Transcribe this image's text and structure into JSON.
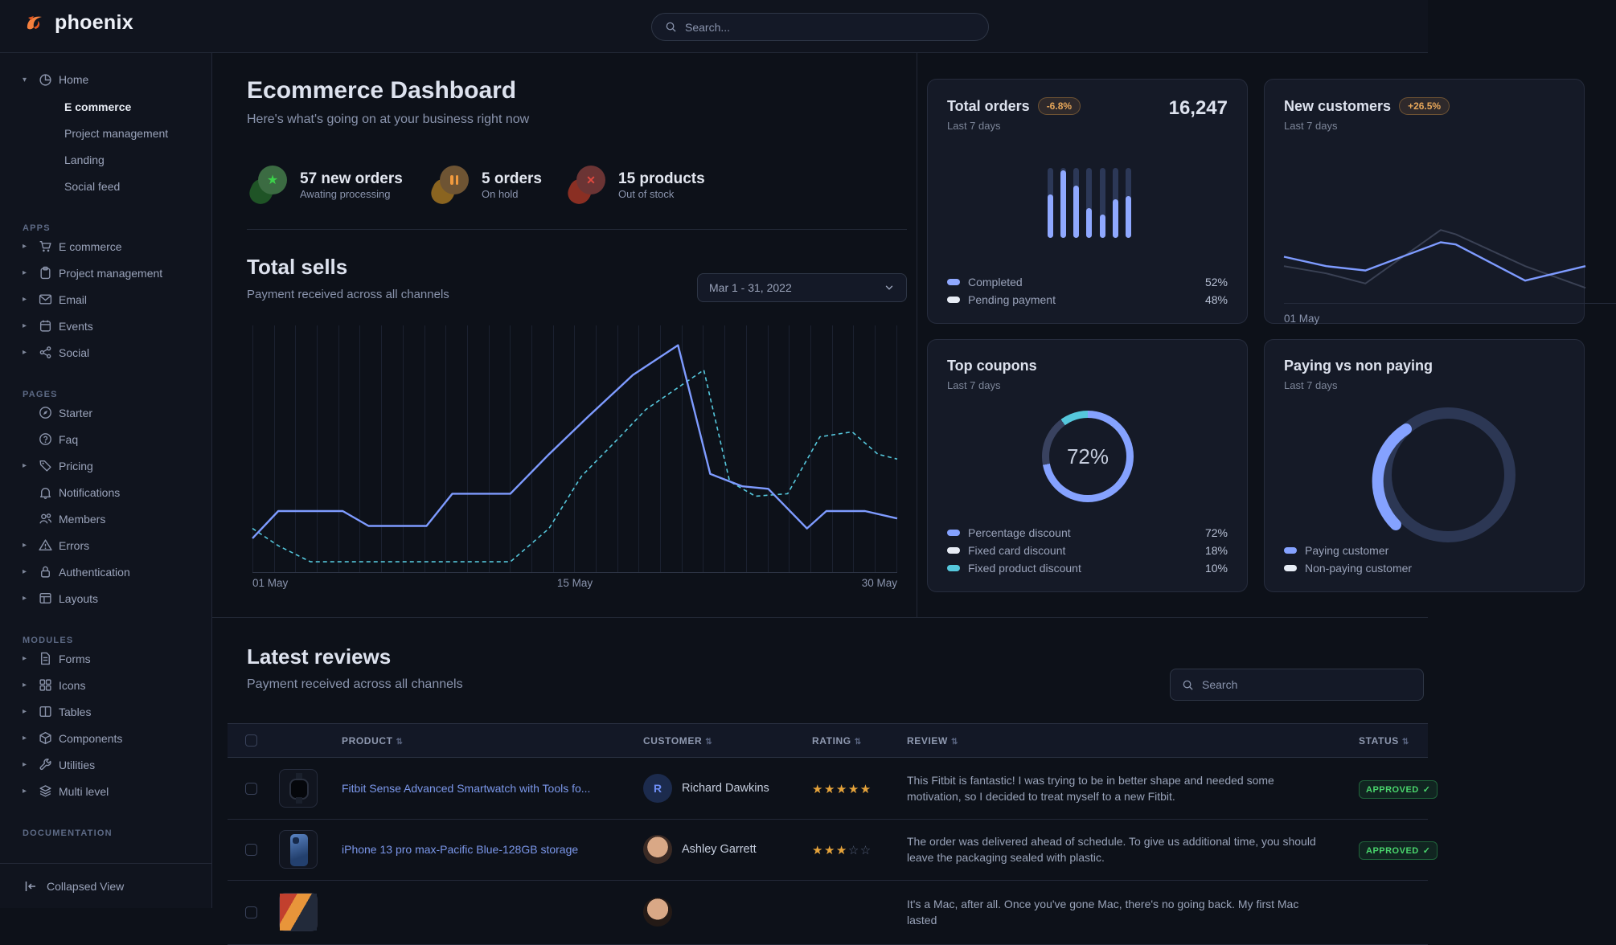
{
  "colors": {
    "accent_blue": "#85a2ff",
    "line_blue": "#7e9bff",
    "dark_bar": "#2c3857",
    "pale_swatch": "#e7ecf5",
    "cyan": "#55c7dc",
    "amber": "#e6a65a",
    "green": "#4ad66d",
    "star": "#e5a33b",
    "link": "#7b97ea",
    "logo_orange": "#f5803e"
  },
  "navbar": {
    "logo_text": "phoenix",
    "search_placeholder": "Search..."
  },
  "sidebar": {
    "home": {
      "label": "Home",
      "icon": "pie-chart",
      "children": [
        {
          "label": "E commerce"
        },
        {
          "label": "Project management"
        },
        {
          "label": "Landing"
        },
        {
          "label": "Social feed"
        }
      ]
    },
    "sections": {
      "apps": "APPS",
      "pages": "PAGES",
      "modules": "MODULES",
      "documentation": "DOCUMENTATION"
    },
    "apps": [
      {
        "label": "E commerce",
        "icon": "shopping-cart"
      },
      {
        "label": "Project management",
        "icon": "clipboard"
      },
      {
        "label": "Email",
        "icon": "mail"
      },
      {
        "label": "Events",
        "icon": "calendar"
      },
      {
        "label": "Social",
        "icon": "share"
      }
    ],
    "pages": [
      {
        "label": "Starter",
        "icon": "compass"
      },
      {
        "label": "Faq",
        "icon": "question-circle"
      },
      {
        "label": "Pricing",
        "icon": "tag"
      },
      {
        "label": "Notifications",
        "icon": "bell"
      },
      {
        "label": "Members",
        "icon": "users"
      },
      {
        "label": "Errors",
        "icon": "warning-triangle"
      },
      {
        "label": "Authentication",
        "icon": "lock"
      },
      {
        "label": "Layouts",
        "icon": "layout"
      }
    ],
    "modules": [
      {
        "label": "Forms",
        "icon": "file-text"
      },
      {
        "label": "Icons",
        "icon": "grid"
      },
      {
        "label": "Tables",
        "icon": "columns"
      },
      {
        "label": "Components",
        "icon": "box"
      },
      {
        "label": "Utilities",
        "icon": "wrench"
      },
      {
        "label": "Multi level",
        "icon": "layers"
      }
    ],
    "collapsed_view": "Collapsed View"
  },
  "header": {
    "title": "Ecommerce Dashboard",
    "subtitle": "Here's what's going on at your business right now"
  },
  "stats": [
    {
      "value": "57 new orders",
      "sub": "Awating processing",
      "icon": "star-badge"
    },
    {
      "value": "5 orders",
      "sub": "On hold",
      "icon": "pause-badge"
    },
    {
      "value": "15 products",
      "sub": "Out of stock",
      "icon": "x-badge"
    }
  ],
  "total_sells": {
    "title": "Total sells",
    "subtitle": "Payment received across all channels",
    "date_range": "Mar 1 - 31, 2022",
    "x_labels": [
      "01 May",
      "15 May",
      "30 May"
    ]
  },
  "cards": {
    "total_orders": {
      "title": "Total orders",
      "badge": "-6.8%",
      "period": "Last 7 days",
      "value": "16,247",
      "legend": [
        {
          "label": "Completed",
          "value": "52%"
        },
        {
          "label": "Pending payment",
          "value": "48%"
        }
      ]
    },
    "new_customers": {
      "title": "New customers",
      "badge": "+26.5%",
      "period": "Last 7 days",
      "x_label": "01 May"
    },
    "top_coupons": {
      "title": "Top coupons",
      "period": "Last 7 days",
      "center_value": "72%",
      "legend": [
        {
          "label": "Percentage discount",
          "value": "72%"
        },
        {
          "label": "Fixed card discount",
          "value": "18%"
        },
        {
          "label": "Fixed product discount",
          "value": "10%"
        }
      ]
    },
    "paying": {
      "title": "Paying vs non paying",
      "period": "Last 7 days",
      "legend": [
        {
          "label": "Paying customer"
        },
        {
          "label": "Non-paying customer"
        }
      ]
    }
  },
  "chart_data": [
    {
      "name": "total_sells",
      "type": "line",
      "gridline_count": 31,
      "x_range": [
        "01 May",
        "30 May"
      ],
      "series": [
        {
          "name": "solid-blue",
          "color": "#7e9bff",
          "points": [
            [
              0,
              0.86
            ],
            [
              0.04,
              0.75
            ],
            [
              0.14,
              0.75
            ],
            [
              0.18,
              0.81
            ],
            [
              0.27,
              0.81
            ],
            [
              0.31,
              0.68
            ],
            [
              0.4,
              0.68
            ],
            [
              0.46,
              0.52
            ],
            [
              0.52,
              0.37
            ],
            [
              0.59,
              0.2
            ],
            [
              0.66,
              0.08
            ],
            [
              0.71,
              0.6
            ],
            [
              0.76,
              0.65
            ],
            [
              0.8,
              0.66
            ],
            [
              0.86,
              0.82
            ],
            [
              0.89,
              0.75
            ],
            [
              0.95,
              0.75
            ],
            [
              1,
              0.78
            ]
          ]
        },
        {
          "name": "dashed-cyan",
          "color": "#55c7dc",
          "points": [
            [
              0,
              0.82
            ],
            [
              0.04,
              0.89
            ],
            [
              0.09,
              0.955
            ],
            [
              0.4,
              0.955
            ],
            [
              0.46,
              0.82
            ],
            [
              0.51,
              0.61
            ],
            [
              0.57,
              0.45
            ],
            [
              0.61,
              0.34
            ],
            [
              0.7,
              0.18
            ],
            [
              0.74,
              0.63
            ],
            [
              0.78,
              0.69
            ],
            [
              0.83,
              0.68
            ],
            [
              0.88,
              0.45
            ],
            [
              0.93,
              0.43
            ],
            [
              0.97,
              0.52
            ],
            [
              1,
              0.54
            ]
          ]
        }
      ]
    },
    {
      "name": "total_orders_bars",
      "type": "bar",
      "pending_color": "#2c3857",
      "completed_color": "#8fa8ff",
      "completed_fraction": [
        0.62,
        0.97,
        0.75,
        0.42,
        0.33,
        0.55,
        0.6
      ],
      "split": {
        "Completed": 52,
        "Pending payment": 48
      }
    },
    {
      "name": "new_customers",
      "type": "line",
      "series": [
        {
          "name": "previous-gray",
          "color": "#3a4154",
          "points": [
            [
              0,
              0.58
            ],
            [
              0.14,
              0.68
            ],
            [
              0.27,
              0.82
            ],
            [
              0.52,
              0.08
            ],
            [
              0.57,
              0.14
            ],
            [
              0.8,
              0.58
            ],
            [
              1,
              0.88
            ]
          ]
        },
        {
          "name": "current-blue",
          "color": "#7e9bff",
          "points": [
            [
              0,
              0.45
            ],
            [
              0.14,
              0.58
            ],
            [
              0.27,
              0.64
            ],
            [
              0.52,
              0.25
            ],
            [
              0.57,
              0.28
            ],
            [
              0.8,
              0.78
            ],
            [
              1,
              0.58
            ]
          ]
        }
      ]
    },
    {
      "name": "top_coupons",
      "type": "pie",
      "center_label": "72%",
      "segments": [
        {
          "label": "Percentage discount",
          "value": 72,
          "color": "#85a2ff"
        },
        {
          "label": "Fixed card discount",
          "value": 18,
          "color": "#39425f"
        },
        {
          "label": "Fixed product discount",
          "value": 10,
          "color": "#55c7dc"
        }
      ]
    },
    {
      "name": "paying_vs_non_paying",
      "type": "pie",
      "segments": [
        {
          "label": "Paying customer",
          "color": "#85a2ff"
        },
        {
          "label": "Non-paying customer",
          "color": "#2c3754"
        }
      ]
    }
  ],
  "reviews": {
    "title": "Latest reviews",
    "subtitle": "Payment received across all channels",
    "search_placeholder": "Search",
    "columns": [
      "PRODUCT",
      "CUSTOMER",
      "RATING",
      "REVIEW",
      "STATUS"
    ],
    "rows": [
      {
        "product": "Fitbit Sense Advanced Smartwatch with Tools fo...",
        "customer": "Richard Dawkins",
        "avatar_initial": "R",
        "rating": 5,
        "review": "This Fitbit is fantastic! I was trying to be in better shape and needed some motivation, so I decided to treat myself to a new Fitbit.",
        "status": "APPROVED"
      },
      {
        "product": "iPhone 13 pro max-Pacific Blue-128GB storage",
        "customer": "Ashley Garrett",
        "rating": 3,
        "review": "The order was delivered ahead of schedule. To give us additional time, you should leave the packaging sealed with plastic.",
        "status": "APPROVED"
      },
      {
        "product": "",
        "customer": "",
        "rating": null,
        "review": "It's a Mac, after all. Once you've gone Mac, there's no going back. My first Mac lasted",
        "status": ""
      }
    ]
  }
}
